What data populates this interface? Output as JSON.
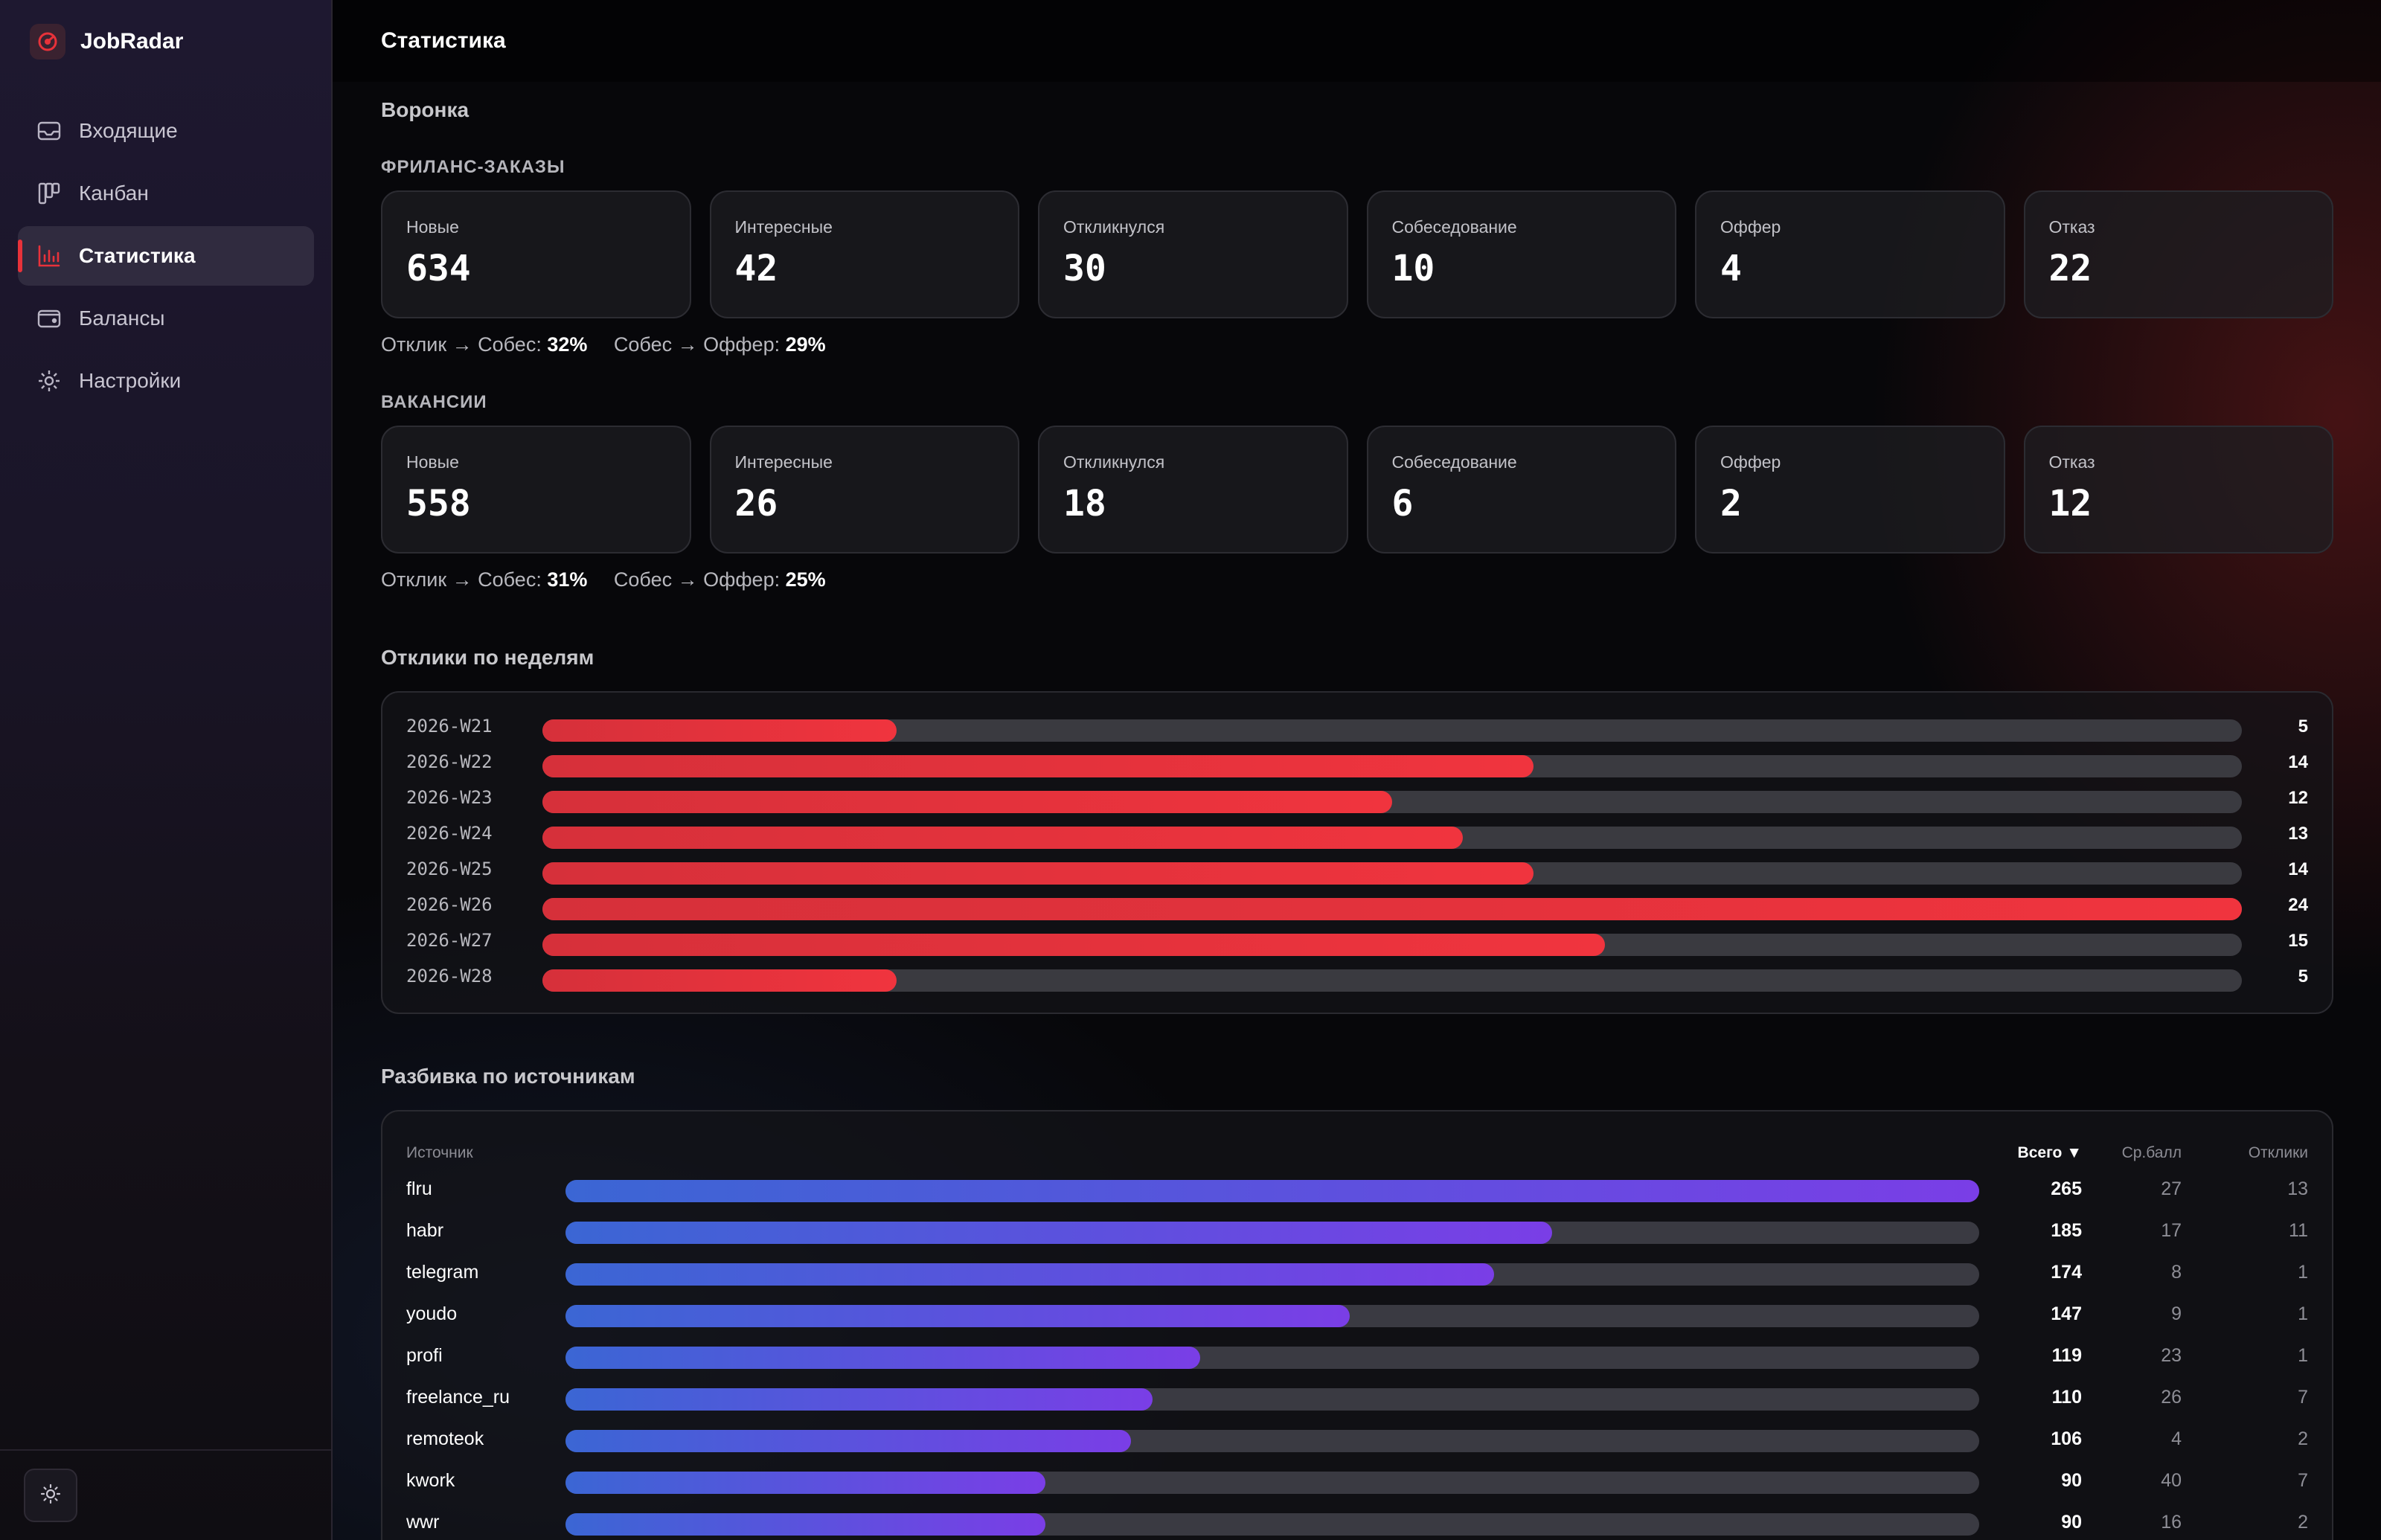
{
  "app": {
    "name": "JobRadar"
  },
  "sidebar": {
    "items": [
      {
        "label": "Входящие",
        "icon": "inbox-icon",
        "active": false
      },
      {
        "label": "Канбан",
        "icon": "kanban-icon",
        "active": false
      },
      {
        "label": "Статистика",
        "icon": "bar-chart-icon",
        "active": true
      },
      {
        "label": "Балансы",
        "icon": "wallet-icon",
        "active": false
      },
      {
        "label": "Настройки",
        "icon": "gear-icon",
        "active": false
      }
    ],
    "theme_toggle_icon": "sun-icon"
  },
  "page": {
    "title": "Статистика"
  },
  "funnel": {
    "title": "Воронка",
    "groups": [
      {
        "name": "ФРИЛАНС-ЗАКАЗЫ",
        "stages": [
          {
            "label": "Новые",
            "value": "634"
          },
          {
            "label": "Интересные",
            "value": "42"
          },
          {
            "label": "Откликнулся",
            "value": "30"
          },
          {
            "label": "Собеседование",
            "value": "10"
          },
          {
            "label": "Оффер",
            "value": "4"
          },
          {
            "label": "Отказ",
            "value": "22"
          }
        ],
        "conv1_label": "Отклик → Собес:",
        "conv1_value": "32%",
        "conv2_label": "Собес → Оффер:",
        "conv2_value": "29%"
      },
      {
        "name": "ВАКАНСИИ",
        "stages": [
          {
            "label": "Новые",
            "value": "558"
          },
          {
            "label": "Интересные",
            "value": "26"
          },
          {
            "label": "Откликнулся",
            "value": "18"
          },
          {
            "label": "Собеседование",
            "value": "6"
          },
          {
            "label": "Оффер",
            "value": "2"
          },
          {
            "label": "Отказ",
            "value": "12"
          }
        ],
        "conv1_label": "Отклик → Собес:",
        "conv1_value": "31%",
        "conv2_label": "Собес → Оффер:",
        "conv2_value": "25%"
      }
    ]
  },
  "weekly": {
    "title": "Отклики по неделям",
    "max": 24,
    "rows": [
      {
        "week": "2026-W21",
        "value": 5
      },
      {
        "week": "2026-W22",
        "value": 14
      },
      {
        "week": "2026-W23",
        "value": 12
      },
      {
        "week": "2026-W24",
        "value": 13
      },
      {
        "week": "2026-W25",
        "value": 14
      },
      {
        "week": "2026-W26",
        "value": 24
      },
      {
        "week": "2026-W27",
        "value": 15
      },
      {
        "week": "2026-W28",
        "value": 5
      }
    ]
  },
  "sources": {
    "title": "Разбивка по источникам",
    "headers": {
      "source": "Источник",
      "total": "Всего ▼",
      "score": "Ср.балл",
      "responses": "Отклики"
    },
    "max": 265,
    "rows": [
      {
        "name": "flru",
        "total": 265,
        "score": 27,
        "responses": 13
      },
      {
        "name": "habr",
        "total": 185,
        "score": 17,
        "responses": 11
      },
      {
        "name": "telegram",
        "total": 174,
        "score": 8,
        "responses": 1
      },
      {
        "name": "youdo",
        "total": 147,
        "score": 9,
        "responses": 1
      },
      {
        "name": "profi",
        "total": 119,
        "score": 23,
        "responses": 1
      },
      {
        "name": "freelance_ru",
        "total": 110,
        "score": 26,
        "responses": 7
      },
      {
        "name": "remoteok",
        "total": 106,
        "score": 4,
        "responses": 2
      },
      {
        "name": "kwork",
        "total": 90,
        "score": 40,
        "responses": 7
      },
      {
        "name": "wwr",
        "total": 90,
        "score": 16,
        "responses": 2
      }
    ]
  },
  "colors": {
    "accent": "#e8323a",
    "bar_red": "#f0343e",
    "bar_blue": "#3b66d4",
    "bar_purple": "#7a3ee6"
  }
}
